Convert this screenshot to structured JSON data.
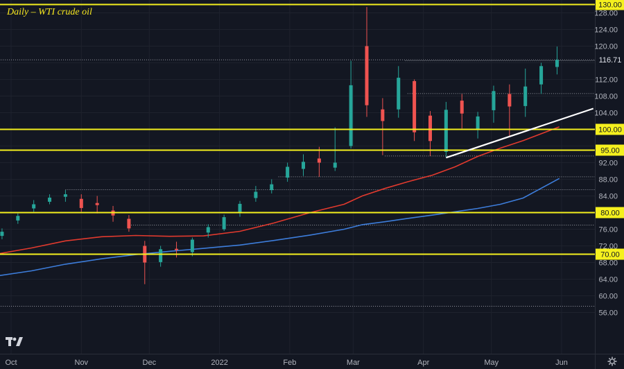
{
  "chart_data": {
    "type": "candlestick",
    "title": "Daily – WTI crude oil",
    "ylim": [
      56,
      130
    ],
    "y_ticks": [
      56,
      60,
      64,
      68,
      72,
      76,
      80,
      84,
      88,
      92,
      96,
      100,
      104,
      108,
      112,
      116,
      120,
      124,
      128
    ],
    "x_labels": [
      {
        "label": "Oct",
        "date": "2021-10-01"
      },
      {
        "label": "Nov",
        "date": "2021-11-01"
      },
      {
        "label": "Dec",
        "date": "2021-12-01"
      },
      {
        "label": "2022",
        "date": "2022-01-01"
      },
      {
        "label": "Feb",
        "date": "2022-02-01"
      },
      {
        "label": "Mar",
        "date": "2022-03-01"
      },
      {
        "label": "Apr",
        "date": "2022-04-01"
      },
      {
        "label": "May",
        "date": "2022-05-01"
      },
      {
        "label": "Jun",
        "date": "2022-06-01"
      }
    ],
    "last_price": {
      "value": 116.71,
      "label": "116.71"
    },
    "horizontal_levels": [
      {
        "value": 130,
        "label": "130.00"
      },
      {
        "value": 100,
        "label": "100.00"
      },
      {
        "value": 95,
        "label": "95.00"
      },
      {
        "value": 80,
        "label": "80.00"
      },
      {
        "value": 70,
        "label": "70.00"
      }
    ],
    "dotted_levels": [
      {
        "value": 116.7,
        "from": "2021-09-20"
      },
      {
        "value": 116.5,
        "from": "2022-03-24"
      },
      {
        "value": 108.6,
        "from": "2022-03-25"
      },
      {
        "value": 93.6,
        "from": "2022-03-15"
      },
      {
        "value": 88.6,
        "from": "2022-01-27"
      },
      {
        "value": 85.5,
        "from": "2021-10-25"
      },
      {
        "value": 77.0,
        "from": "2021-11-23"
      },
      {
        "value": 57.5,
        "from": "2021-09-20"
      }
    ],
    "trendline": {
      "color": "#ffffff",
      "from": {
        "date": "2022-04-11",
        "value": 93.2
      },
      "to": {
        "date": "2022-06-15",
        "value": 105.0
      }
    },
    "series": [
      {
        "color": "#e23a2e",
        "points": [
          [
            "2021-09-20",
            69.6
          ],
          [
            "2021-10-10",
            71.5
          ],
          [
            "2021-10-25",
            73.2
          ],
          [
            "2021-11-10",
            74.2
          ],
          [
            "2021-11-25",
            74.5
          ],
          [
            "2021-12-10",
            74.3
          ],
          [
            "2021-12-25",
            74.4
          ],
          [
            "2022-01-10",
            75.5
          ],
          [
            "2022-01-25",
            77.5
          ],
          [
            "2022-02-10",
            80.0
          ],
          [
            "2022-02-25",
            82.0
          ],
          [
            "2022-03-05",
            84.0
          ],
          [
            "2022-03-15",
            85.8
          ],
          [
            "2022-03-25",
            87.4
          ],
          [
            "2022-04-05",
            89.0
          ],
          [
            "2022-04-15",
            91.0
          ],
          [
            "2022-04-25",
            93.5
          ],
          [
            "2022-05-05",
            95.5
          ],
          [
            "2022-05-15",
            97.3
          ],
          [
            "2022-05-31",
            100.6
          ]
        ]
      },
      {
        "color": "#3d7ddb",
        "points": [
          [
            "2021-09-20",
            64.4
          ],
          [
            "2021-10-10",
            66.0
          ],
          [
            "2021-10-25",
            67.6
          ],
          [
            "2021-11-10",
            68.9
          ],
          [
            "2021-11-25",
            69.9
          ],
          [
            "2021-12-10",
            70.7
          ],
          [
            "2021-12-25",
            71.4
          ],
          [
            "2022-01-10",
            72.2
          ],
          [
            "2022-01-25",
            73.3
          ],
          [
            "2022-02-10",
            74.6
          ],
          [
            "2022-02-25",
            76.0
          ],
          [
            "2022-03-05",
            77.1
          ],
          [
            "2022-03-15",
            77.8
          ],
          [
            "2022-03-25",
            78.6
          ],
          [
            "2022-04-05",
            79.4
          ],
          [
            "2022-04-15",
            80.2
          ],
          [
            "2022-04-25",
            81.0
          ],
          [
            "2022-05-05",
            82.0
          ],
          [
            "2022-05-15",
            83.5
          ],
          [
            "2022-05-31",
            88.2
          ]
        ]
      }
    ],
    "candles": [
      [
        "2021-09-20",
        73.5,
        72.5,
        74.3,
        71.8
      ],
      [
        "2021-09-27",
        74.4,
        75.4,
        76.2,
        73.6
      ],
      [
        "2021-10-04",
        78.1,
        79.2,
        79.8,
        77.3
      ],
      [
        "2021-10-11",
        81.0,
        82.0,
        83.0,
        80.2
      ],
      [
        "2021-10-18",
        82.6,
        83.6,
        84.4,
        82.0
      ],
      [
        "2021-10-25",
        83.8,
        84.4,
        85.4,
        82.6
      ],
      [
        "2021-11-01",
        83.3,
        81.1,
        84.4,
        80.2
      ],
      [
        "2021-11-08",
        82.3,
        81.8,
        84.0,
        79.8
      ],
      [
        "2021-11-15",
        80.5,
        79.3,
        81.6,
        77.8
      ],
      [
        "2021-11-22",
        78.5,
        76.2,
        79.4,
        75.4
      ],
      [
        "2021-11-29",
        72.0,
        68.0,
        73.2,
        62.8
      ],
      [
        "2021-12-06",
        68.1,
        71.2,
        72.0,
        67.0
      ],
      [
        "2021-12-13",
        71.3,
        71.0,
        73.0,
        69.2
      ],
      [
        "2021-12-20",
        70.5,
        73.5,
        74.0,
        69.5
      ],
      [
        "2021-12-27",
        75.2,
        76.5,
        77.2,
        74.0
      ],
      [
        "2022-01-03",
        76.0,
        78.9,
        79.5,
        75.6
      ],
      [
        "2022-01-10",
        80.1,
        82.1,
        82.8,
        79.0
      ],
      [
        "2022-01-17",
        83.5,
        85.0,
        86.4,
        82.6
      ],
      [
        "2022-01-24",
        85.4,
        86.8,
        88.0,
        84.6
      ],
      [
        "2022-01-31",
        88.4,
        91.0,
        92.0,
        87.4
      ],
      [
        "2022-02-07",
        90.5,
        92.2,
        94.0,
        88.8
      ],
      [
        "2022-02-14",
        93.0,
        92.0,
        95.8,
        88.6
      ],
      [
        "2022-02-21",
        90.8,
        92.0,
        100.5,
        90.0
      ],
      [
        "2022-02-28",
        96.0,
        110.6,
        116.5,
        95.4
      ],
      [
        "2022-03-07",
        120.0,
        105.8,
        129.4,
        103.0
      ],
      [
        "2022-03-14",
        104.8,
        102.0,
        107.5,
        93.8
      ],
      [
        "2022-03-21",
        104.8,
        112.4,
        115.2,
        102.8
      ],
      [
        "2022-03-28",
        111.6,
        99.3,
        112.0,
        97.2
      ],
      [
        "2022-04-04",
        103.3,
        97.2,
        104.4,
        93.6
      ],
      [
        "2022-04-11",
        94.6,
        104.7,
        106.6,
        93.3
      ],
      [
        "2022-04-18",
        106.9,
        103.8,
        108.5,
        100.2
      ],
      [
        "2022-04-25",
        99.9,
        103.1,
        104.2,
        97.8
      ],
      [
        "2022-05-02",
        104.6,
        109.2,
        110.5,
        101.6
      ],
      [
        "2022-05-09",
        108.5,
        105.5,
        110.8,
        98.2
      ],
      [
        "2022-05-16",
        105.6,
        110.3,
        114.6,
        103.0
      ],
      [
        "2022-05-23",
        110.8,
        115.2,
        116.0,
        108.5
      ],
      [
        "2022-05-30",
        115.0,
        116.7,
        119.9,
        113.2
      ]
    ]
  },
  "ui": {
    "logo": "tradingview-logo-icon",
    "settings": "gear-icon"
  }
}
